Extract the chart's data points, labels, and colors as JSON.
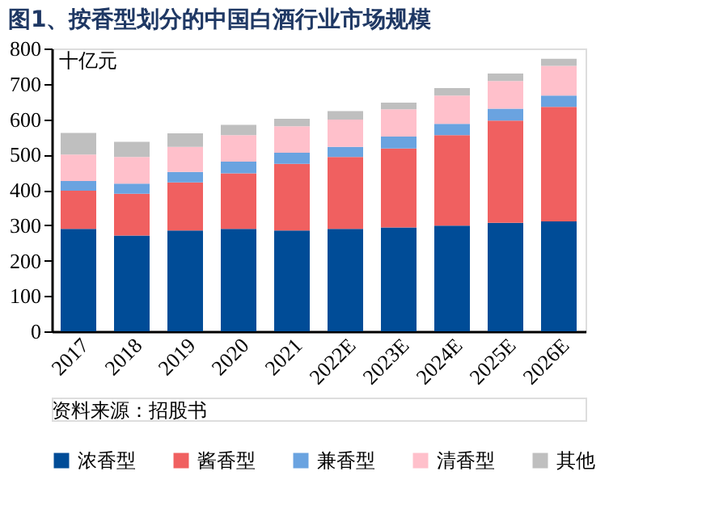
{
  "chart_data": {
    "type": "bar",
    "stacked": true,
    "title": "图1、按香型划分的中国白酒行业市场规模",
    "ylabel": "十亿元",
    "categories": [
      "2017",
      "2018",
      "2019",
      "2020",
      "2021",
      "2022E",
      "2023E",
      "2024E",
      "2025E",
      "2026E"
    ],
    "series": [
      {
        "name": "浓香型",
        "color": "#004c97",
        "values": [
          290,
          271,
          285,
          290,
          285,
          290,
          294,
          299,
          307,
          311
        ]
      },
      {
        "name": "酱香型",
        "color": "#f06060",
        "values": [
          108,
          118,
          136,
          157,
          189,
          203,
          223,
          256,
          289,
          324
        ]
      },
      {
        "name": "兼香型",
        "color": "#6aa3e0",
        "values": [
          27,
          29,
          30,
          33,
          31,
          29,
          34,
          32,
          34,
          32
        ]
      },
      {
        "name": "清香型",
        "color": "#ffc0cb",
        "values": [
          75,
          75,
          71,
          75,
          75,
          77,
          77,
          80,
          78,
          84
        ]
      },
      {
        "name": "其他",
        "color": "#bfbfbf",
        "values": [
          61,
          43,
          38,
          29,
          21,
          24,
          19,
          21,
          21,
          20
        ]
      }
    ],
    "ylim": [
      0,
      800
    ],
    "yticks": [
      0,
      100,
      200,
      300,
      400,
      500,
      600,
      700,
      800
    ],
    "grid": false,
    "legend": "bottom",
    "annotations": [
      "资料来源：招股书"
    ]
  }
}
